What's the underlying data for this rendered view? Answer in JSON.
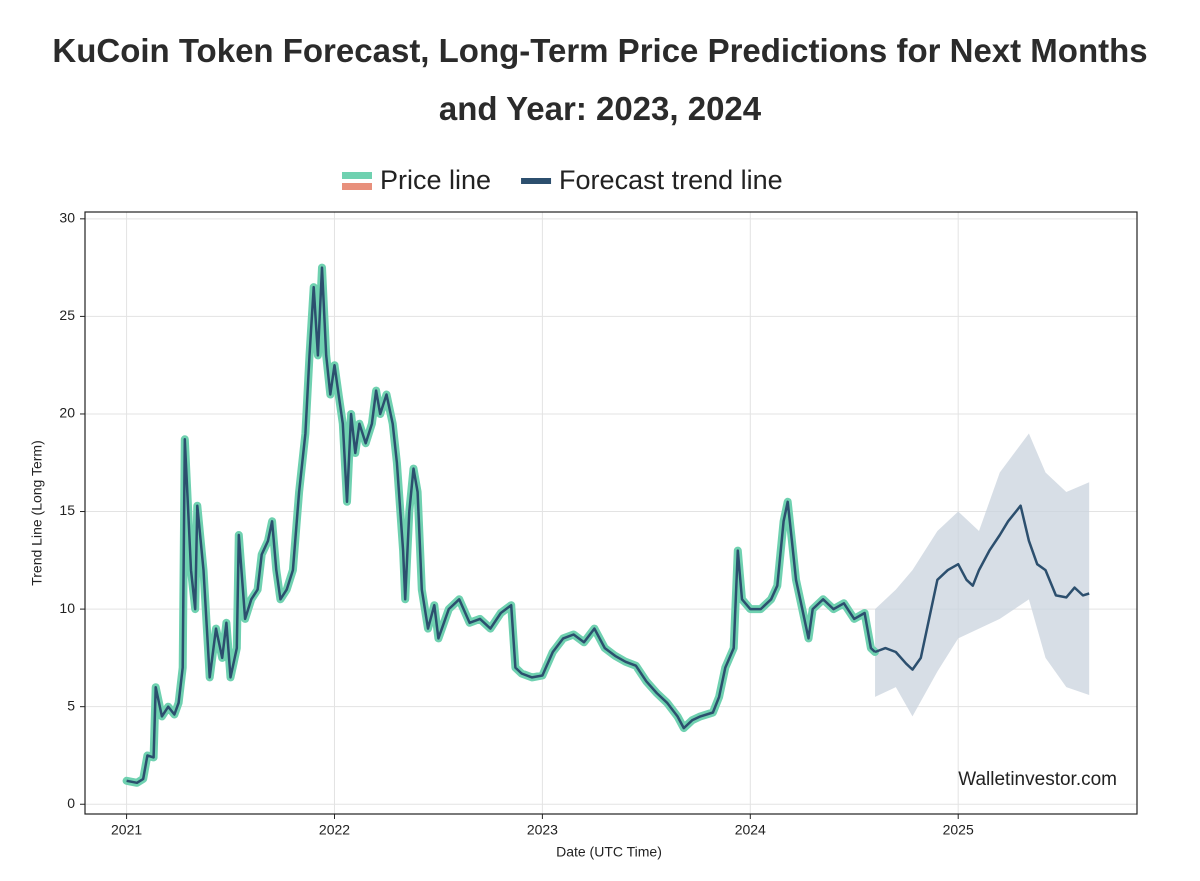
{
  "chart_data": {
    "type": "line",
    "title": "KuCoin Token Forecast, Long-Term Price Predictions for Next Months and Year: 2023, 2024",
    "x_label": "Date (UTC Time)",
    "y_label": "Trend Line (Long Term)",
    "annotation": "Walletinvestor.com",
    "xlim": [
      2020.8,
      2025.86
    ],
    "xticks": [
      2021,
      2022,
      2023,
      2024,
      2025
    ],
    "ylim": [
      -0.5,
      30.35
    ],
    "yticks": [
      0,
      5,
      10,
      15,
      20,
      25,
      30
    ],
    "grid": true,
    "series": [
      {
        "name": "Price line",
        "color": "#6fd1b0",
        "edge_color": "#e8907c",
        "line_color": "#2c4f6e",
        "x": [
          2021.0,
          2021.05,
          2021.08,
          2021.1,
          2021.13,
          2021.14,
          2021.17,
          2021.2,
          2021.23,
          2021.25,
          2021.27,
          2021.28,
          2021.31,
          2021.33,
          2021.34,
          2021.37,
          2021.4,
          2021.43,
          2021.46,
          2021.48,
          2021.5,
          2021.53,
          2021.54,
          2021.57,
          2021.6,
          2021.63,
          2021.65,
          2021.68,
          2021.7,
          2021.72,
          2021.74,
          2021.77,
          2021.8,
          2021.83,
          2021.86,
          2021.88,
          2021.9,
          2021.92,
          2021.94,
          2021.96,
          2021.98,
          2022.0,
          2022.02,
          2022.04,
          2022.06,
          2022.08,
          2022.1,
          2022.12,
          2022.15,
          2022.18,
          2022.2,
          2022.22,
          2022.25,
          2022.28,
          2022.3,
          2022.33,
          2022.34,
          2022.36,
          2022.38,
          2022.4,
          2022.42,
          2022.45,
          2022.48,
          2022.5,
          2022.55,
          2022.6,
          2022.65,
          2022.7,
          2022.75,
          2022.8,
          2022.85,
          2022.87,
          2022.9,
          2022.95,
          2023.0,
          2023.05,
          2023.1,
          2023.15,
          2023.2,
          2023.25,
          2023.3,
          2023.35,
          2023.4,
          2023.45,
          2023.5,
          2023.55,
          2023.6,
          2023.65,
          2023.68,
          2023.72,
          2023.76,
          2023.82,
          2023.85,
          2023.88,
          2023.92,
          2023.94,
          2023.96,
          2024.0,
          2024.05,
          2024.1,
          2024.13,
          2024.16,
          2024.18,
          2024.2,
          2024.22,
          2024.25,
          2024.28,
          2024.3,
          2024.35,
          2024.4,
          2024.45,
          2024.5,
          2024.55,
          2024.58,
          2024.6
        ],
        "values": [
          1.2,
          1.1,
          1.3,
          2.5,
          2.4,
          6.0,
          4.5,
          5.0,
          4.6,
          5.2,
          7,
          18.7,
          12,
          10,
          15.3,
          12,
          6.5,
          9,
          7.5,
          9.3,
          6.5,
          8,
          13.8,
          9.5,
          10.5,
          11,
          12.8,
          13.5,
          14.5,
          12,
          10.5,
          11,
          12,
          16,
          19,
          23,
          26.5,
          23,
          27.5,
          23,
          21,
          22.5,
          21,
          19.5,
          15.5,
          20,
          18,
          19.5,
          18.5,
          19.5,
          21.2,
          20,
          21,
          19.5,
          17.5,
          13,
          10.5,
          15,
          17.2,
          16,
          11,
          9,
          10.2,
          8.5,
          10,
          10.5,
          9.3,
          9.5,
          9,
          9.8,
          10.2,
          7,
          6.7,
          6.5,
          6.6,
          7.8,
          8.5,
          8.7,
          8.3,
          9,
          8,
          7.6,
          7.3,
          7.1,
          6.3,
          5.7,
          5.2,
          4.5,
          3.9,
          4.3,
          4.5,
          4.7,
          5.5,
          7,
          8,
          13,
          10.5,
          10,
          10,
          10.5,
          11.2,
          14.5,
          15.5,
          13.5,
          11.5,
          10,
          8.5,
          10,
          10.5,
          10,
          10.3,
          9.5,
          9.8,
          8,
          7.8
        ]
      },
      {
        "name": "Forecast trend line",
        "color": "#2c4f6e",
        "x": [
          2024.6,
          2024.65,
          2024.7,
          2024.75,
          2024.78,
          2024.82,
          2024.86,
          2024.9,
          2024.95,
          2025.0,
          2025.04,
          2025.07,
          2025.1,
          2025.15,
          2025.2,
          2025.24,
          2025.3,
          2025.34,
          2025.38,
          2025.42,
          2025.47,
          2025.52,
          2025.56,
          2025.6,
          2025.63
        ],
        "values": [
          7.8,
          8.0,
          7.8,
          7.2,
          6.9,
          7.5,
          9.5,
          11.5,
          12,
          12.3,
          11.5,
          11.2,
          12,
          13,
          13.8,
          14.5,
          15.3,
          13.5,
          12.3,
          12,
          10.7,
          10.6,
          11.1,
          10.7,
          10.8
        ]
      }
    ],
    "forecast_band": {
      "color": "#c9d3de",
      "x": [
        2024.6,
        2024.7,
        2024.78,
        2024.9,
        2025.0,
        2025.1,
        2025.2,
        2025.34,
        2025.42,
        2025.52,
        2025.63
      ],
      "upper": [
        10,
        11,
        12,
        14,
        15,
        14,
        17,
        19,
        17,
        16,
        16.5
      ],
      "lower": [
        5.5,
        6,
        4.5,
        6.8,
        8.5,
        9,
        9.5,
        10.5,
        7.5,
        6,
        5.6
      ]
    }
  }
}
